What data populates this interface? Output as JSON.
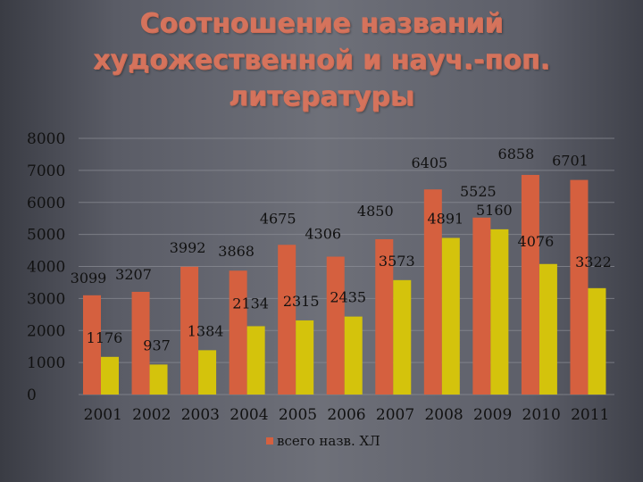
{
  "title_lines": [
    "Соотношение названий",
    "художественной и науч.-поп.",
    "литературы"
  ],
  "colors": {
    "series1": "#d5603f",
    "series2": "#d4c30c",
    "axis_text": "#111111",
    "grid": "#8c8e96",
    "title": "#d5735c"
  },
  "chart_data": {
    "type": "bar",
    "categories": [
      "2001",
      "2002",
      "2003",
      "2004",
      "2005",
      "2006",
      "2007",
      "2008",
      "2009",
      "2010",
      "2011"
    ],
    "series": [
      {
        "name": "всего назв. ХЛ",
        "values": [
          3099,
          3207,
          3992,
          3868,
          4675,
          4306,
          4850,
          6405,
          5525,
          6858,
          6701
        ]
      },
      {
        "values": [
          1176,
          937,
          1384,
          2134,
          2315,
          2435,
          3573,
          4891,
          5160,
          4076,
          3322
        ]
      }
    ],
    "ylim": [
      0,
      8000
    ],
    "yticks": [
      0,
      1000,
      2000,
      3000,
      4000,
      5000,
      6000,
      7000,
      8000
    ],
    "grid": true,
    "legend_position": "bottom"
  }
}
